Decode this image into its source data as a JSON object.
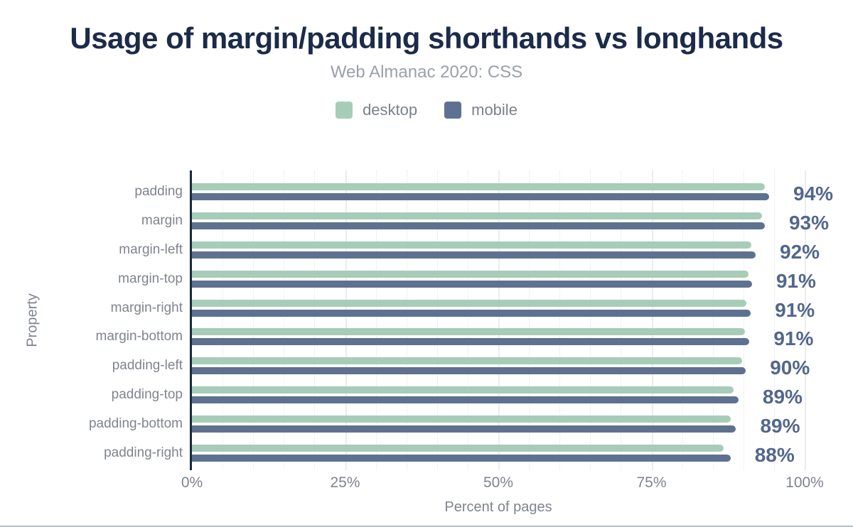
{
  "header": {
    "title": "Usage of margin/padding shorthands vs longhands",
    "subtitle": "Web Almanac 2020: CSS"
  },
  "legend": {
    "items": [
      {
        "label": "desktop",
        "color": "#a7ccb8"
      },
      {
        "label": "mobile",
        "color": "#5e7190"
      }
    ]
  },
  "colors": {
    "title": "#1b2b49",
    "subtitle": "#9aa0aa",
    "axis_text": "#7f848e",
    "value_label": "#53678c",
    "axis_line": "#1a2740",
    "desktop_bar": "#a7ccb8",
    "mobile_bar": "#5e7190",
    "gridline": "#ececee"
  },
  "chart_data": {
    "type": "bar",
    "orientation": "horizontal",
    "title": "Usage of margin/padding shorthands vs longhands",
    "subtitle": "Web Almanac 2020: CSS",
    "xlabel": "Percent of pages",
    "ylabel": "Property",
    "xlim": [
      0,
      100
    ],
    "grid": {
      "minor_step": 5,
      "major_step": 25
    },
    "legend_position": "top",
    "categories": [
      "padding",
      "margin",
      "margin-left",
      "margin-top",
      "margin-right",
      "margin-bottom",
      "padding-left",
      "padding-top",
      "padding-bottom",
      "padding-right"
    ],
    "series": [
      {
        "name": "desktop",
        "color": "#a7ccb8",
        "values": [
          93.5,
          93.0,
          91.3,
          90.8,
          90.5,
          90.3,
          89.8,
          88.4,
          87.9,
          86.8
        ]
      },
      {
        "name": "mobile",
        "color": "#5e7190",
        "values": [
          94.2,
          93.5,
          92.0,
          91.4,
          91.2,
          91.0,
          90.4,
          89.2,
          88.8,
          87.9
        ]
      }
    ],
    "value_labels": [
      "94%",
      "93%",
      "92%",
      "91%",
      "91%",
      "91%",
      "90%",
      "89%",
      "89%",
      "88%"
    ],
    "x_ticks": [
      {
        "label": "0%",
        "pos": 0
      },
      {
        "label": "25%",
        "pos": 25
      },
      {
        "label": "50%",
        "pos": 50
      },
      {
        "label": "75%",
        "pos": 75
      },
      {
        "label": "100%",
        "pos": 100
      }
    ]
  }
}
